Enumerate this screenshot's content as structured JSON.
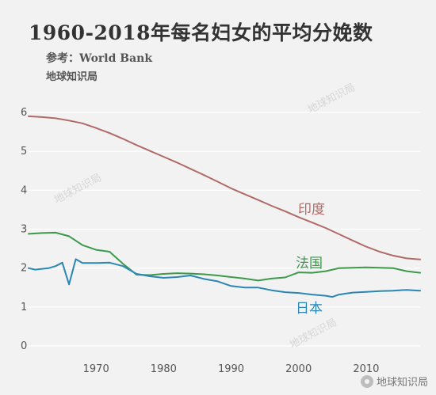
{
  "header": {
    "title": "1960-2018年每名妇女的平均分娩数",
    "subtitle": "参考：World Bank",
    "source_label": "地球知识局"
  },
  "watermark": {
    "text": "地球知识局"
  },
  "credit": {
    "text": "地球知识局",
    "icon": "wechat-icon"
  },
  "chart_data": {
    "type": "line",
    "title": "1960-2018年每名妇女的平均分娩数",
    "xlabel": "",
    "ylabel": "",
    "xlim": [
      1960,
      2018
    ],
    "ylim": [
      0,
      6
    ],
    "yticks": [
      0,
      1,
      2,
      3,
      4,
      5,
      6
    ],
    "xticks": [
      1970,
      1980,
      1990,
      2000,
      2010
    ],
    "grid": true,
    "legend": "inline labels",
    "series": [
      {
        "name": "印度",
        "color": "#b06a68",
        "x": [
          1960,
          1962,
          1964,
          1966,
          1968,
          1970,
          1972,
          1974,
          1976,
          1978,
          1980,
          1982,
          1984,
          1986,
          1988,
          1990,
          1992,
          1994,
          1996,
          1998,
          2000,
          2002,
          2004,
          2006,
          2008,
          2010,
          2012,
          2014,
          2016,
          2018
        ],
        "values": [
          5.9,
          5.88,
          5.85,
          5.79,
          5.72,
          5.6,
          5.47,
          5.32,
          5.16,
          5.01,
          4.86,
          4.71,
          4.55,
          4.39,
          4.22,
          4.05,
          3.9,
          3.75,
          3.6,
          3.46,
          3.31,
          3.17,
          3.03,
          2.87,
          2.71,
          2.55,
          2.42,
          2.32,
          2.25,
          2.22
        ]
      },
      {
        "name": "法国",
        "color": "#3b9a4b",
        "x": [
          1960,
          1962,
          1964,
          1966,
          1968,
          1970,
          1972,
          1974,
          1976,
          1978,
          1980,
          1982,
          1984,
          1986,
          1988,
          1990,
          1992,
          1994,
          1996,
          1998,
          2000,
          2002,
          2004,
          2006,
          2008,
          2010,
          2012,
          2014,
          2016,
          2018
        ],
        "values": [
          2.88,
          2.9,
          2.91,
          2.82,
          2.59,
          2.47,
          2.42,
          2.11,
          1.83,
          1.82,
          1.85,
          1.87,
          1.86,
          1.84,
          1.81,
          1.77,
          1.73,
          1.68,
          1.73,
          1.76,
          1.89,
          1.88,
          1.92,
          2.0,
          2.01,
          2.02,
          2.01,
          2.0,
          1.92,
          1.88
        ]
      },
      {
        "name": "日本",
        "color": "#2a86b3",
        "x": [
          1960,
          1961,
          1962,
          1963,
          1964,
          1965,
          1966,
          1967,
          1968,
          1970,
          1972,
          1974,
          1976,
          1978,
          1980,
          1982,
          1984,
          1986,
          1988,
          1990,
          1992,
          1994,
          1996,
          1998,
          2000,
          2002,
          2004,
          2005,
          2006,
          2008,
          2010,
          2012,
          2014,
          2016,
          2018
        ],
        "values": [
          2.0,
          1.96,
          1.98,
          2.0,
          2.05,
          2.14,
          1.58,
          2.23,
          2.13,
          2.13,
          2.14,
          2.05,
          1.85,
          1.79,
          1.75,
          1.77,
          1.81,
          1.72,
          1.66,
          1.54,
          1.5,
          1.5,
          1.43,
          1.38,
          1.36,
          1.32,
          1.29,
          1.26,
          1.32,
          1.37,
          1.39,
          1.41,
          1.42,
          1.44,
          1.42
        ]
      }
    ]
  }
}
